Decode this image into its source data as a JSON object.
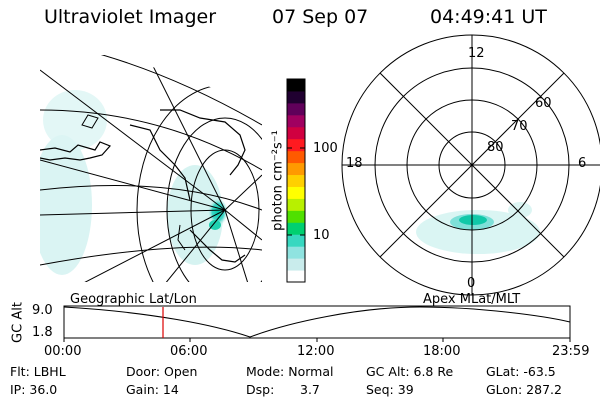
{
  "header": {
    "title": "Ultraviolet Imager",
    "date": "07 Sep 07",
    "time": "04:49:41 UT"
  },
  "colorbar": {
    "unit_label": "photon cm⁻²s⁻¹",
    "ticks": [
      "100",
      "10"
    ],
    "colors": [
      "#ffffff",
      "#c9ecec",
      "#8fe3e0",
      "#37d8c0",
      "#00d070",
      "#50e000",
      "#b8f000",
      "#ffff00",
      "#ffd000",
      "#ff9a00",
      "#ff5a00",
      "#ff1a20",
      "#d00040",
      "#a00060",
      "#60005a",
      "#200030",
      "#000000"
    ]
  },
  "polar_plot": {
    "lat_labels": [
      "60",
      "70",
      "80"
    ],
    "mlt_labels": [
      "12",
      "18",
      "6",
      "0"
    ]
  },
  "geo_panel": {
    "label": "Geographic Lat/Lon"
  },
  "apex_panel": {
    "label": "Apex MLat/MLT"
  },
  "altitude_plot": {
    "ylabel": "GC Alt",
    "y_ticks": [
      "9.0",
      "1.8"
    ],
    "x_ticks": [
      "00:00",
      "06:00",
      "12:00",
      "18:00",
      "23:59"
    ],
    "marker_color": "#dd0000"
  },
  "info": {
    "row1": {
      "flt": "Flt: LBHL",
      "door": "Door: Open",
      "mode": "Mode: Normal",
      "gcalt": "GC Alt: 6.8 Re",
      "glat": "GLat: -63.5"
    },
    "row2": {
      "ip": "IP: 36.0",
      "gain": "Gain: 14",
      "dsp_label": "Dsp:",
      "dsp_value": "3.7",
      "seq": "Seq: 39",
      "glon": "GLon: 287.2"
    }
  }
}
